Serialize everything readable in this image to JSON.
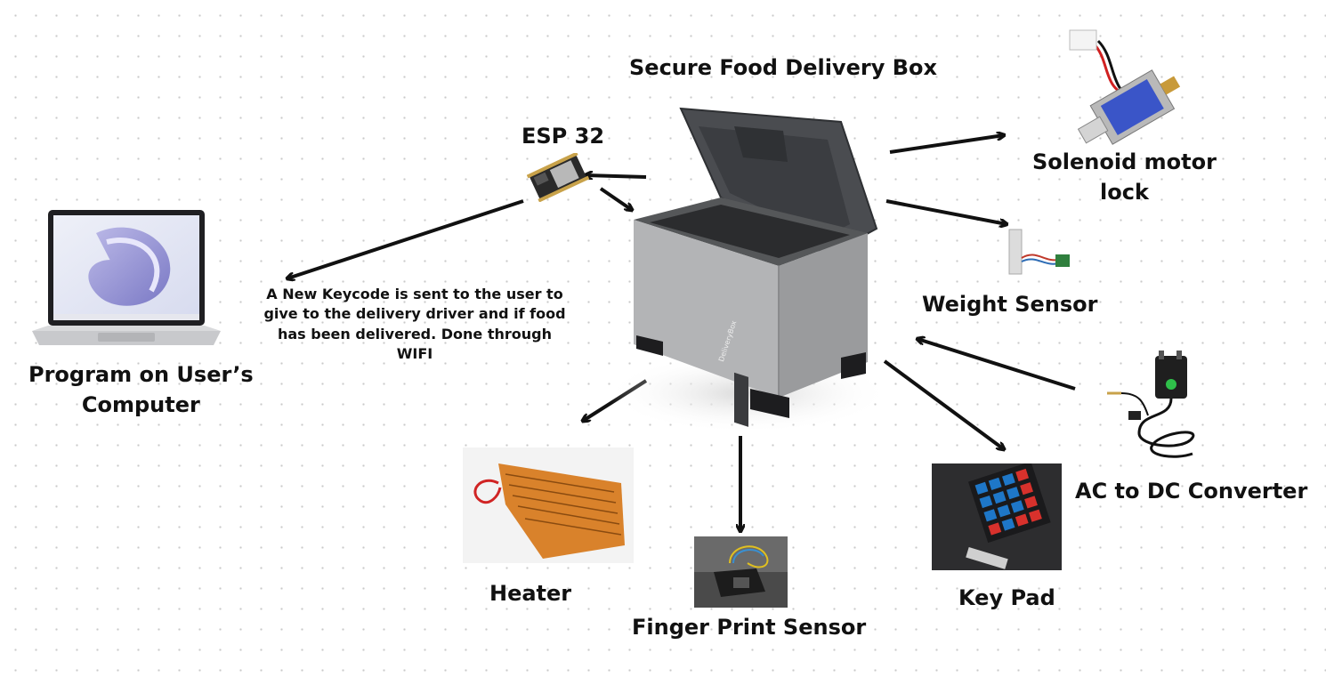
{
  "diagram": {
    "title": "Secure Food Delivery Box",
    "nodes": {
      "esp32": "ESP 32",
      "solenoid_line1": "Solenoid motor",
      "solenoid_line2": "lock",
      "weight_sensor": "Weight Sensor",
      "computer_line1": "Program on User’s",
      "computer_line2": "Computer",
      "ac_dc": "AC to DC Converter",
      "heater": "Heater",
      "fingerprint": "Finger Print Sensor",
      "keypad": "Key Pad"
    },
    "note": "A New Keycode is sent to the user to give to the delivery driver and if food has been delivered. Done through WIFI",
    "box_brand": "DeliveryBox",
    "colors": {
      "box_body": "#a6a7a9",
      "box_lid": "#4a4c50",
      "heater": "#d9822b",
      "keypad_keys_blue": "#1e77c8",
      "keypad_keys_red": "#d8312c",
      "arrow": "#111111"
    }
  }
}
